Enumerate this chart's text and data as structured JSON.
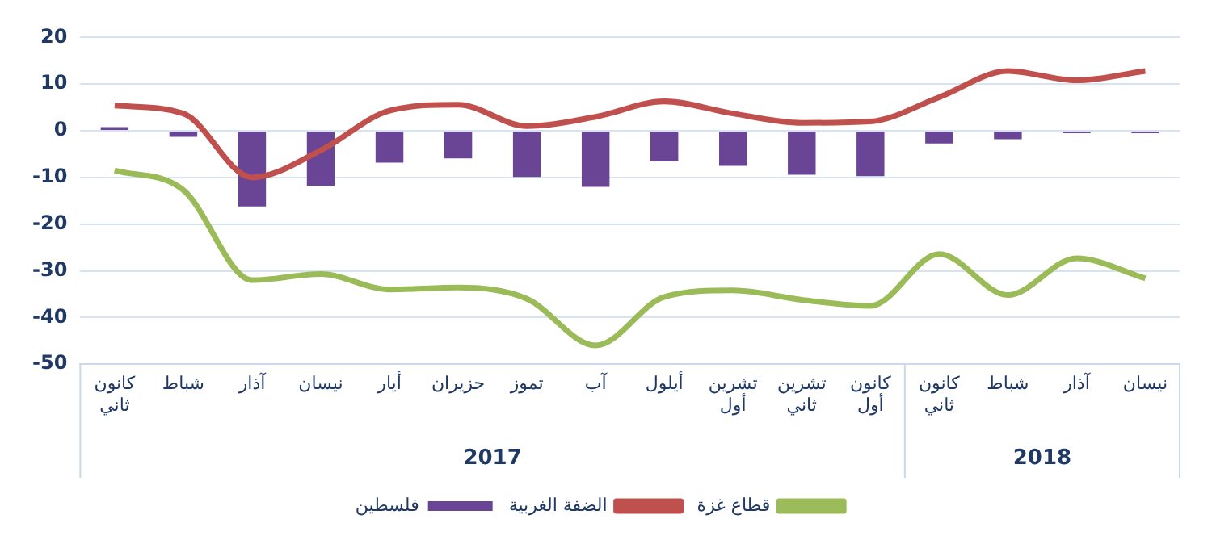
{
  "chart_data": {
    "type": "bar",
    "categories": [
      "كانون ثاني",
      "شباط",
      "آذار",
      "نيسان",
      "أيار",
      "حزيران",
      "تموز",
      "آب",
      "أيلول",
      "تشرين أول",
      "تشرين ثاني",
      "كانون أول",
      "كانون ثاني",
      "شباط",
      "آذار",
      "نيسان"
    ],
    "series": [
      {
        "name": "قطاع غزة",
        "type": "line",
        "color": "#9bbb59",
        "values": [
          -8.5,
          -12.7,
          -32,
          -30.7,
          -34,
          -33.6,
          -36,
          -46,
          -35.6,
          -34.2,
          -36.2,
          -37.5,
          -26.4,
          -35.2,
          -27.3,
          -31.6
        ]
      },
      {
        "name": "الضفة الغربية",
        "type": "line",
        "color": "#c0504d",
        "values": [
          5.4,
          3.7,
          -10,
          -4.2,
          4.3,
          5.6,
          1,
          3,
          6.3,
          3.7,
          1.7,
          2,
          7.2,
          12.8,
          10.8,
          12.8
        ]
      },
      {
        "name": "فلسطين",
        "color": "#6a4596",
        "values": [
          0.8,
          -1.3,
          -16.2,
          -11.8,
          -6.8,
          -5.9,
          -9.9,
          -12,
          -6.5,
          -7.5,
          -9.4,
          -9.7,
          -2.7,
          -1.8,
          -0.5,
          -0.5
        ]
      }
    ],
    "ylim": [
      -50,
      20
    ],
    "yticks": [
      -50,
      -40,
      -30,
      -20,
      -10,
      0,
      10,
      20
    ],
    "grid": "y",
    "legend": "bottom",
    "marker": "none",
    "line_style": "solid",
    "annotations": [
      "2017",
      "2018"
    ]
  }
}
